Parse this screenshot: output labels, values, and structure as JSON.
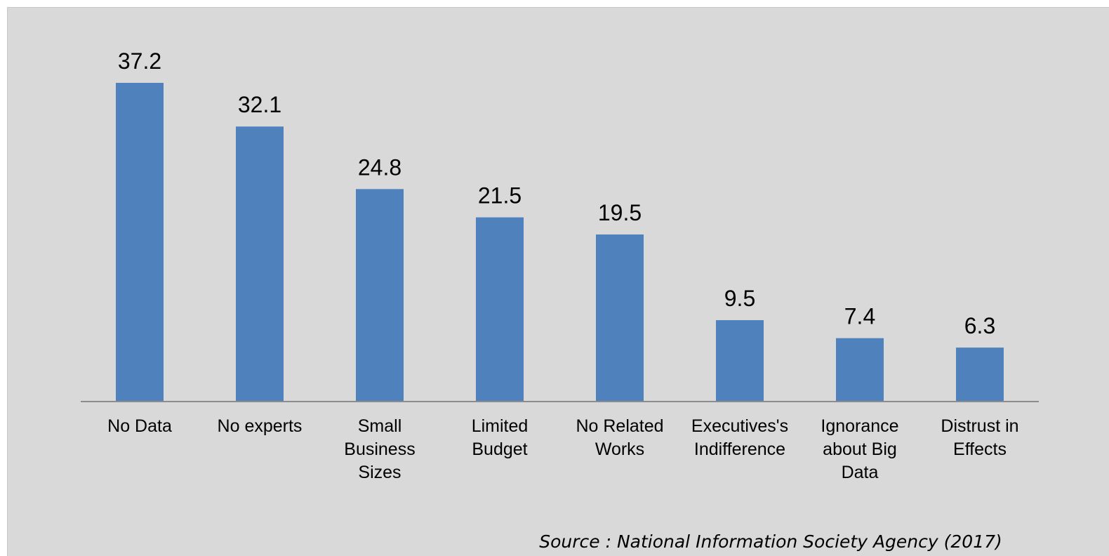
{
  "chart_data": {
    "type": "bar",
    "categories": [
      "No Data",
      "No experts",
      "Small Business Sizes",
      "Limited Budget",
      "No Related Works",
      "Executives's Indifference",
      "Ignorance about Big Data",
      "Distrust in Effects"
    ],
    "category_lines": [
      [
        "No Data"
      ],
      [
        "No experts"
      ],
      [
        "Small",
        "Business",
        "Sizes"
      ],
      [
        "Limited",
        "Budget"
      ],
      [
        "No Related",
        "Works"
      ],
      [
        "Executives's",
        "Indifference"
      ],
      [
        "Ignorance",
        "about Big",
        "Data"
      ],
      [
        "Distrust in",
        "Effects"
      ]
    ],
    "values": [
      37.2,
      32.1,
      24.8,
      21.5,
      19.5,
      9.5,
      7.4,
      6.3
    ],
    "value_labels": [
      "37.2",
      "32.1",
      "24.8",
      "21.5",
      "19.5",
      "9.5",
      "7.4",
      "6.3"
    ],
    "ylim": [
      0,
      37.2
    ],
    "grid": false,
    "bar_color": "#4f81bd",
    "background_color": "#d9d9d9",
    "source_note": "Source : National Information Society Agency (2017)"
  }
}
